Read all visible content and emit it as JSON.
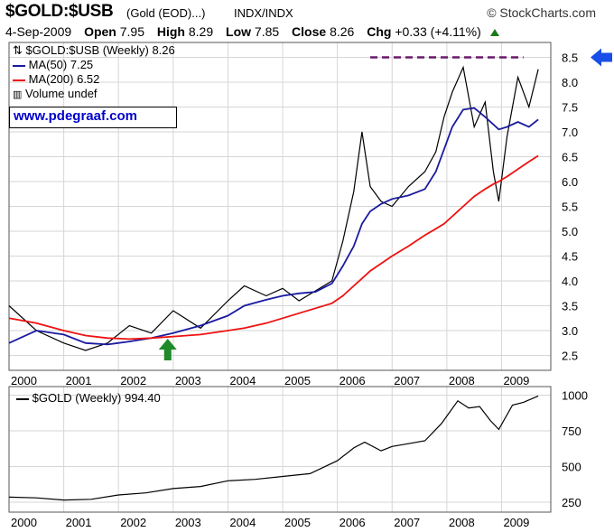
{
  "header": {
    "symbol": "$GOLD:$USB",
    "subtitle": "(Gold (EOD)...)",
    "exchange": "INDX/INDX",
    "brand": "© StockCharts.com"
  },
  "ohlc": {
    "date": "4-Sep-2009",
    "open_label": "Open",
    "open": "7.95",
    "high_label": "High",
    "high": "8.29",
    "low_label": "Low",
    "low": "7.85",
    "close_label": "Close",
    "close": "8.26",
    "chg_label": "Chg",
    "chg": "+0.33 (+4.11%)"
  },
  "legend": {
    "price": "$GOLD:$USB (Weekly) 8.26",
    "ma50": "MA(50) 7.25",
    "ma200": "MA(200) 6.52",
    "volume": "Volume undef"
  },
  "watermark": "www.pdegraaf.com",
  "lower_legend": "$GOLD (Weekly) 994.40",
  "colors": {
    "price": "#000000",
    "ma50": "#1a1aa0",
    "ma200": "#ee1111",
    "resistance": "#6a1a6a",
    "arrow_up": "#1f8a2a",
    "arrow_left": "#1a4ee8",
    "grid": "#d6d6d6",
    "link": "#0000cc"
  },
  "chart_data": [
    {
      "type": "line",
      "title": "$GOLD:$USB (Weekly)",
      "xlabel": "",
      "ylabel": "",
      "x": [
        2000,
        2000.5,
        2001,
        2001.4,
        2001.8,
        2002.2,
        2002.6,
        2003.0,
        2003.5,
        2004.0,
        2004.3,
        2004.7,
        2005.0,
        2005.3,
        2005.6,
        2005.9,
        2006.1,
        2006.3,
        2006.45,
        2006.6,
        2006.8,
        2007.0,
        2007.3,
        2007.6,
        2007.8,
        2007.95,
        2008.1,
        2008.3,
        2008.5,
        2008.7,
        2008.85,
        2008.95,
        2009.1,
        2009.3,
        2009.5,
        2009.67
      ],
      "series": [
        {
          "name": "$GOLD:$USB",
          "values": [
            3.5,
            3.0,
            2.75,
            2.6,
            2.75,
            3.1,
            2.95,
            3.4,
            3.05,
            3.6,
            3.9,
            3.7,
            3.85,
            3.6,
            3.8,
            4.0,
            4.8,
            5.8,
            7.0,
            5.9,
            5.6,
            5.5,
            5.9,
            6.2,
            6.6,
            7.3,
            7.8,
            8.3,
            7.1,
            7.6,
            6.2,
            5.6,
            6.9,
            8.1,
            7.5,
            8.26
          ]
        },
        {
          "name": "MA(50)",
          "values": [
            2.75,
            3.0,
            2.92,
            2.75,
            2.72,
            2.78,
            2.85,
            2.95,
            3.1,
            3.3,
            3.5,
            3.62,
            3.7,
            3.75,
            3.78,
            3.95,
            4.3,
            4.7,
            5.15,
            5.4,
            5.55,
            5.65,
            5.72,
            5.85,
            6.2,
            6.65,
            7.1,
            7.45,
            7.48,
            7.3,
            7.15,
            7.05,
            7.1,
            7.2,
            7.1,
            7.25
          ]
        },
        {
          "name": "MA(200)",
          "values": [
            3.25,
            3.15,
            3.0,
            2.9,
            2.85,
            2.83,
            2.85,
            2.88,
            2.92,
            3.0,
            3.05,
            3.15,
            3.25,
            3.35,
            3.45,
            3.55,
            3.7,
            3.9,
            4.05,
            4.2,
            4.35,
            4.5,
            4.7,
            4.92,
            5.05,
            5.15,
            5.3,
            5.5,
            5.7,
            5.85,
            5.95,
            6.0,
            6.1,
            6.25,
            6.4,
            6.52
          ]
        }
      ],
      "resistance": {
        "value": 8.5,
        "x_start": 2006.6,
        "x_end": 2009.4
      },
      "xlim": [
        2000,
        2009.9
      ],
      "ylim": [
        2.2,
        8.8
      ],
      "x_ticks": [
        "2000",
        "2001",
        "2002",
        "2003",
        "2004",
        "2005",
        "2006",
        "2007",
        "2008",
        "2009"
      ],
      "y_ticks": [
        "2.5",
        "3.0",
        "3.5",
        "4.0",
        "4.5",
        "5.0",
        "5.5",
        "6.0",
        "6.5",
        "7.0",
        "7.5",
        "8.0",
        "8.5"
      ],
      "annotations": [
        {
          "type": "up-arrow",
          "x": 2002.9,
          "y": 2.4
        },
        {
          "type": "left-arrow",
          "y": 8.5
        }
      ]
    },
    {
      "type": "line",
      "title": "$GOLD (Weekly)",
      "x": [
        2000,
        2000.5,
        2001,
        2001.5,
        2002,
        2002.5,
        2003,
        2003.5,
        2004,
        2004.5,
        2005,
        2005.5,
        2006,
        2006.3,
        2006.5,
        2006.8,
        2007,
        2007.3,
        2007.6,
        2007.9,
        2008.2,
        2008.4,
        2008.6,
        2008.8,
        2008.95,
        2009.2,
        2009.4,
        2009.67
      ],
      "series": [
        {
          "name": "$GOLD",
          "values": [
            285,
            280,
            265,
            270,
            300,
            315,
            345,
            360,
            400,
            410,
            430,
            450,
            540,
            630,
            670,
            610,
            640,
            660,
            680,
            800,
            960,
            910,
            920,
            820,
            760,
            930,
            950,
            994.4
          ]
        }
      ],
      "xlim": [
        2000,
        2009.9
      ],
      "ylim": [
        180,
        1060
      ],
      "x_ticks": [
        "2000",
        "2001",
        "2002",
        "2003",
        "2004",
        "2005",
        "2006",
        "2007",
        "2008",
        "2009"
      ],
      "y_ticks": [
        "250",
        "500",
        "750",
        "1000"
      ]
    }
  ]
}
